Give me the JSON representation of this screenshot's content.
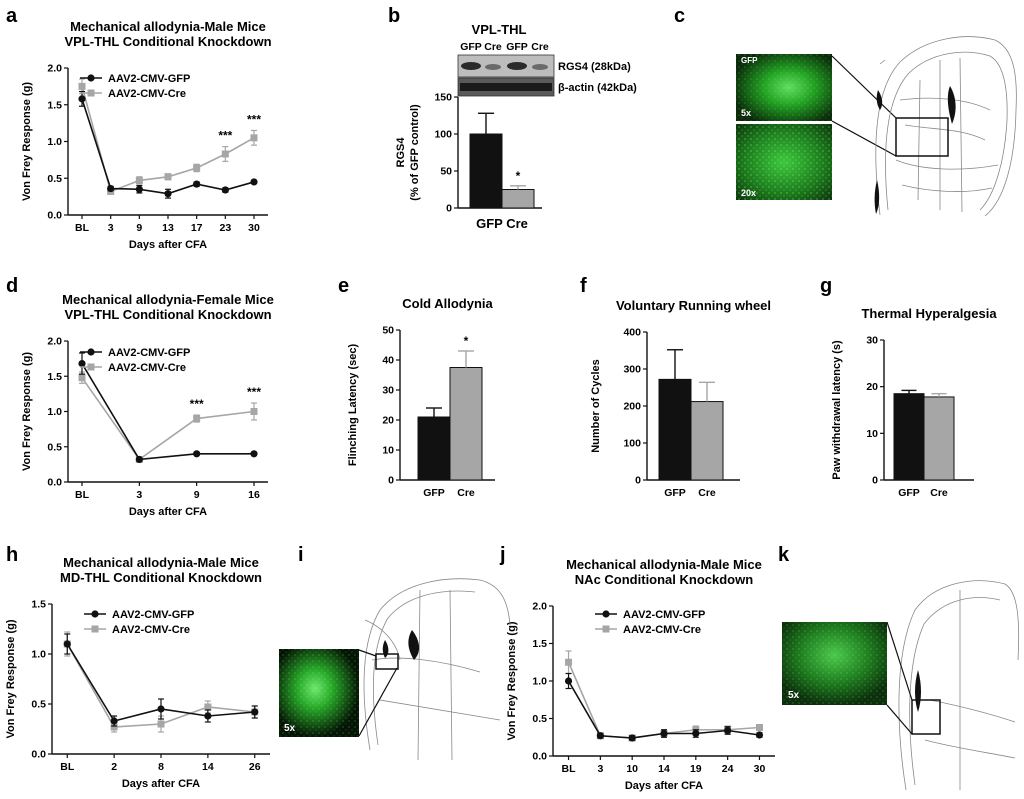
{
  "panel_labels": {
    "a": "a",
    "b": "b",
    "c": "c",
    "d": "d",
    "e": "e",
    "f": "f",
    "g": "g",
    "h": "h",
    "i": "i",
    "j": "j",
    "k": "k"
  },
  "colors": {
    "gfp": "#111111",
    "cre": "#a6a6a6",
    "tissue": "#2fb32f",
    "tissue_dark": "#0b2d0b"
  },
  "chart_data": [
    {
      "id": "a",
      "type": "line",
      "title": "Mechanical allodynia-Male Mice",
      "subtitle": "VPL-THL Conditional Knockdown",
      "xlabel": "Days after CFA",
      "ylabel": "Von Frey Response (g)",
      "categories": [
        "BL",
        "3",
        "9",
        "13",
        "17",
        "23",
        "30"
      ],
      "ylim": [
        0,
        2.0
      ],
      "yticks": [
        "0.0",
        "0.5",
        "1.0",
        "1.5",
        "2.0"
      ],
      "series": [
        {
          "name": "AAV2-CMV-GFP",
          "values": [
            1.58,
            0.36,
            0.35,
            0.29,
            0.42,
            0.34,
            0.45
          ],
          "errors": [
            0.1,
            0.03,
            0.05,
            0.06,
            0.03,
            0.03,
            0.02
          ]
        },
        {
          "name": "AAV2-CMV-Cre",
          "values": [
            1.75,
            0.32,
            0.47,
            0.52,
            0.64,
            0.83,
            1.05
          ],
          "errors": [
            0.1,
            0.03,
            0.05,
            0.04,
            0.05,
            0.1,
            0.1
          ]
        }
      ],
      "annotations": [
        {
          "index": 5,
          "text": "***"
        },
        {
          "index": 6,
          "text": "***"
        }
      ]
    },
    {
      "id": "b",
      "type": "bar",
      "header": "VPL-THL",
      "lane_labels": [
        "GFP",
        "Cre",
        "GFP",
        "Cre"
      ],
      "blot_labels": [
        "RGS4 (28kDa)",
        "β-actin (42kDa)"
      ],
      "ylabel": [
        "RGS4",
        "(% of GFP control)"
      ],
      "categories": [
        "GFP",
        "Cre"
      ],
      "category_label": "GFP Cre",
      "values": [
        100,
        25
      ],
      "errors": [
        28,
        5
      ],
      "ylim": [
        0,
        150
      ],
      "yticks": [
        "0",
        "50",
        "100",
        "150"
      ],
      "annotations": [
        {
          "index": 1,
          "text": "*"
        }
      ]
    },
    {
      "id": "d",
      "type": "line",
      "title": "Mechanical allodynia-Female Mice",
      "subtitle": "VPL-THL Conditional Knockdown",
      "xlabel": "Days after CFA",
      "ylabel": "Von Frey Response (g)",
      "categories": [
        "BL",
        "3",
        "9",
        "16"
      ],
      "ylim": [
        0,
        2.0
      ],
      "yticks": [
        "0.0",
        "0.5",
        "1.0",
        "1.5",
        "2.0"
      ],
      "series": [
        {
          "name": "AAV2-CMV-GFP",
          "values": [
            1.68,
            0.32,
            0.4,
            0.4
          ],
          "errors": [
            0.15,
            0.02,
            0.02,
            0.02
          ]
        },
        {
          "name": "AAV2-CMV-Cre",
          "values": [
            1.48,
            0.32,
            0.9,
            1.0
          ],
          "errors": [
            0.08,
            0.02,
            0.05,
            0.12
          ]
        }
      ],
      "annotations": [
        {
          "index": 2,
          "text": "***"
        },
        {
          "index": 3,
          "text": "***"
        }
      ]
    },
    {
      "id": "e",
      "type": "bar",
      "title": "Cold Allodynia",
      "ylabel": "Flinching Latency (sec)",
      "categories": [
        "GFP",
        "Cre"
      ],
      "values": [
        21,
        37.5
      ],
      "errors": [
        3,
        5.5
      ],
      "ylim": [
        0,
        50
      ],
      "yticks": [
        "0",
        "10",
        "20",
        "30",
        "40",
        "50"
      ],
      "annotations": [
        {
          "index": 1,
          "text": "*"
        }
      ]
    },
    {
      "id": "f",
      "type": "bar",
      "title": "Voluntary Running wheel",
      "ylabel": "Number of Cycles",
      "categories": [
        "GFP",
        "Cre"
      ],
      "values": [
        272,
        212
      ],
      "errors": [
        80,
        52
      ],
      "ylim": [
        0,
        400
      ],
      "yticks": [
        "0",
        "100",
        "200",
        "300",
        "400"
      ],
      "annotations": []
    },
    {
      "id": "g",
      "type": "bar",
      "title": "Thermal  Hyperalgesia",
      "ylabel": "Paw withdrawal latency (s)",
      "categories": [
        "GFP",
        "Cre"
      ],
      "values": [
        18.5,
        17.8
      ],
      "errors": [
        0.7,
        0.7
      ],
      "ylim": [
        0,
        30
      ],
      "yticks": [
        "0",
        "10",
        "20",
        "30"
      ],
      "annotations": []
    },
    {
      "id": "h",
      "type": "line",
      "title": "Mechanical allodynia-Male Mice",
      "subtitle": "MD-THL Conditional Knockdown",
      "xlabel": "Days after CFA",
      "ylabel": "Von Frey Response (g)",
      "categories": [
        "BL",
        "2",
        "8",
        "14",
        "26"
      ],
      "ylim": [
        0,
        1.5
      ],
      "yticks": [
        "0.0",
        "0.5",
        "1.0",
        "1.5"
      ],
      "series": [
        {
          "name": "AAV2-CMV-GFP",
          "values": [
            1.1,
            0.33,
            0.45,
            0.38,
            0.42
          ],
          "errors": [
            0.1,
            0.05,
            0.1,
            0.06,
            0.06
          ]
        },
        {
          "name": "AAV2-CMV-Cre",
          "values": [
            1.1,
            0.27,
            0.3,
            0.47,
            0.42
          ],
          "errors": [
            0.12,
            0.05,
            0.08,
            0.06,
            0.06
          ]
        }
      ],
      "annotations": []
    },
    {
      "id": "j",
      "type": "line",
      "title": "Mechanical allodynia-Male Mice",
      "subtitle": "NAc Conditional Knockdown",
      "xlabel": "Days after CFA",
      "ylabel": "Von Frey Response (g)",
      "categories": [
        "BL",
        "3",
        "10",
        "14",
        "19",
        "24",
        "30"
      ],
      "ylim": [
        0,
        2.0
      ],
      "yticks": [
        "0.0",
        "0.5",
        "1.0",
        "1.5",
        "2.0"
      ],
      "series": [
        {
          "name": "AAV2-CMV-GFP",
          "values": [
            1.0,
            0.27,
            0.24,
            0.3,
            0.3,
            0.34,
            0.28
          ],
          "errors": [
            0.1,
            0.03,
            0.03,
            0.05,
            0.05,
            0.05,
            0.03
          ]
        },
        {
          "name": "AAV2-CMV-Cre",
          "values": [
            1.25,
            0.27,
            0.24,
            0.3,
            0.35,
            0.35,
            0.38
          ],
          "errors": [
            0.15,
            0.03,
            0.03,
            0.05,
            0.05,
            0.05,
            0.03
          ]
        }
      ],
      "annotations": []
    }
  ],
  "images": {
    "c": {
      "top_label": "GFP",
      "top_mag": "5x",
      "bottom_mag": "20x"
    },
    "i": {
      "mag": "5x"
    },
    "k": {
      "mag": "5x"
    }
  }
}
